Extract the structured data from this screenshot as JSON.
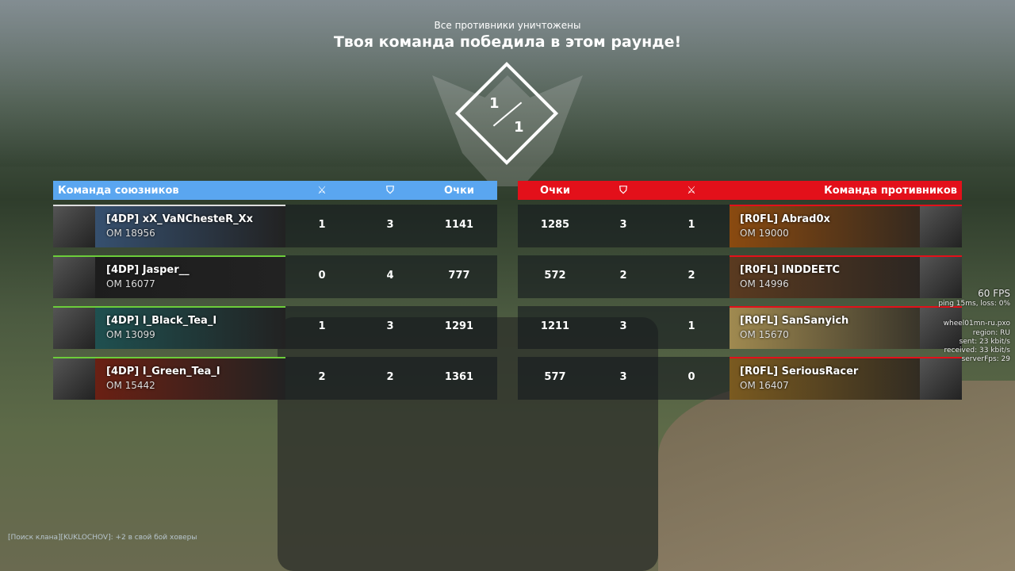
{
  "header": {
    "subtitle": "Все противники уничтожены",
    "title": "Твоя команда победила в этом раунде!",
    "score_ally": "1",
    "score_enemy": "1"
  },
  "colors": {
    "ally": "#5aa6f0",
    "enemy": "#e3101a",
    "ally_border": "#6ccd3a"
  },
  "ally": {
    "title": "Команда союзников",
    "col_kills_icon": "kills-icon",
    "col_assists_icon": "shield-icon",
    "col_points": "Очки",
    "players": [
      {
        "name": "[4DP] xX_VaNChesteR_Xx",
        "om": "OM 18956",
        "kills": "1",
        "assists": "3",
        "points": "1141",
        "banner": "#3a5a80"
      },
      {
        "name": "[4DP] Jasper__",
        "om": "OM 16077",
        "kills": "0",
        "assists": "4",
        "points": "777",
        "banner": "#1c1c1c"
      },
      {
        "name": "[4DP] I_Black_Tea_I",
        "om": "OM 13099",
        "kills": "1",
        "assists": "3",
        "points": "1291",
        "banner": "#1e5a5a"
      },
      {
        "name": "[4DP] I_Green_Tea_I",
        "om": "OM 15442",
        "kills": "2",
        "assists": "2",
        "points": "1361",
        "banner": "#7a2010"
      }
    ]
  },
  "enemy": {
    "title": "Команда противников",
    "col_points": "Очки",
    "col_assists_icon": "shield-icon",
    "col_kills_icon": "kills-icon",
    "players": [
      {
        "name": "[R0FL] Abrad0x",
        "om": "OM 19000",
        "kills": "1",
        "assists": "3",
        "points": "1285",
        "banner": "#8a4a10"
      },
      {
        "name": "[R0FL] INDDEETC",
        "om": "OM 14996",
        "kills": "2",
        "assists": "2",
        "points": "572",
        "banner": "#5a3a20"
      },
      {
        "name": "[R0FL] SanSanyich",
        "om": "OM 15670",
        "kills": "1",
        "assists": "3",
        "points": "1211",
        "banner": "#a08a50"
      },
      {
        "name": "[R0FL] SeriousRacer",
        "om": "OM 16407",
        "kills": "0",
        "assists": "3",
        "points": "577",
        "banner": "#7a5a20"
      }
    ]
  },
  "stats": {
    "fps": "60 FPS",
    "ping": "ping 15ms, loss: 0%",
    "server": "wheel01mn-ru.pxo",
    "region": "region: RU",
    "sent": "sent: 23 kbit/s",
    "received": "received: 33 kbit/s",
    "server_fps": "serverFps: 29"
  },
  "chat": {
    "message": "[Поиск клана][KUKLOCHOV]: +2 в свой бой ховеры"
  }
}
